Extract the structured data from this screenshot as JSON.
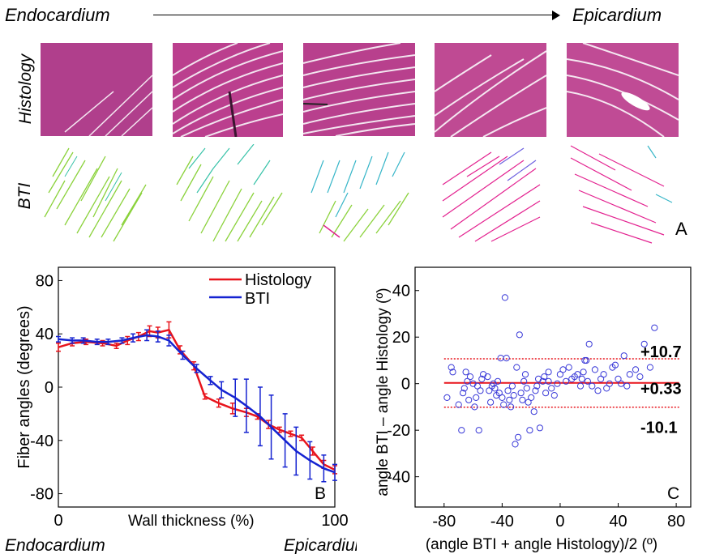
{
  "header": {
    "left": "Endocardium",
    "right": "Epicardium"
  },
  "rows": {
    "histology": "Histology",
    "bti": "BTI"
  },
  "panel_labels": {
    "a": "A",
    "b": "B",
    "c": "C"
  },
  "chart_data": [
    {
      "type": "line",
      "panel": "B",
      "xlabel": "Wall thickness (%)",
      "ylabel": "Fiber angles (degrees)",
      "xlim": [
        0,
        100
      ],
      "ylim": [
        -90,
        90
      ],
      "xticks": [
        "0",
        "100"
      ],
      "yticks": [
        "80",
        "40",
        "0",
        "-40",
        "-80"
      ],
      "legend": {
        "position": "top-right"
      },
      "bottom_left_label": "Endocardium",
      "bottom_right_label": "Epicardium",
      "series": [
        {
          "name": "Histology",
          "color": "#e8141c",
          "x": [
            0,
            5,
            10,
            16,
            21,
            25,
            29,
            33,
            36,
            40,
            44,
            49,
            53,
            58,
            63,
            68,
            72,
            76,
            80,
            84,
            88,
            92,
            96,
            100
          ],
          "y": [
            30,
            33,
            34,
            33,
            31,
            35,
            38,
            42,
            41,
            43,
            28,
            16,
            -7,
            -12,
            -16,
            -19,
            -22,
            -28,
            -32,
            -35,
            -38,
            -48,
            -58,
            -62
          ],
          "err": [
            3,
            2,
            2,
            2,
            2,
            3,
            3,
            4,
            4,
            6,
            3,
            3,
            2,
            3,
            4,
            3,
            2,
            3,
            2,
            2,
            2,
            3,
            3,
            3
          ]
        },
        {
          "name": "BTI",
          "color": "#1523d1",
          "x": [
            0,
            5,
            9,
            14,
            18,
            23,
            27,
            32,
            36,
            40,
            45,
            50,
            55,
            59,
            64,
            68,
            73,
            77,
            82,
            86,
            91,
            96,
            100
          ],
          "y": [
            36,
            35,
            35,
            34,
            34,
            35,
            37,
            39,
            38,
            35,
            24,
            14,
            5,
            -2,
            -8,
            -14,
            -22,
            -30,
            -40,
            -48,
            -55,
            -61,
            -64
          ],
          "err": [
            2,
            2,
            2,
            2,
            2,
            2,
            3,
            4,
            4,
            4,
            3,
            3,
            3,
            6,
            14,
            20,
            22,
            24,
            20,
            18,
            14,
            10,
            6
          ]
        }
      ]
    },
    {
      "type": "scatter",
      "panel": "C",
      "xlabel": "(angle BTI + angle Histology)/2 (º)",
      "ylabel": "angle BTI – angle Histology (º)",
      "xlim": [
        -100,
        90
      ],
      "ylim": [
        -53,
        50
      ],
      "xticks": [
        "-80",
        "-40",
        "0",
        "40",
        "80"
      ],
      "yticks": [
        "40",
        "20",
        "0",
        "-20",
        "-40"
      ],
      "lines": [
        {
          "label": "+10.7",
          "value": 10.7,
          "style": "dotted"
        },
        {
          "label": "+0.33",
          "value": 0.33,
          "style": "solid"
        },
        {
          "label": "-10.1",
          "value": -10.1,
          "style": "dotted"
        }
      ],
      "points": [
        [
          -78,
          -6
        ],
        [
          -75,
          7
        ],
        [
          -74,
          5
        ],
        [
          -70,
          -9
        ],
        [
          -68,
          -20
        ],
        [
          -67,
          -4
        ],
        [
          -66,
          -2
        ],
        [
          -65,
          5
        ],
        [
          -64,
          1
        ],
        [
          -63,
          -7
        ],
        [
          -62,
          3
        ],
        [
          -60,
          0
        ],
        [
          -59,
          -10
        ],
        [
          -58,
          -6
        ],
        [
          -57,
          -1
        ],
        [
          -56,
          -20
        ],
        [
          -55,
          -3
        ],
        [
          -54,
          2
        ],
        [
          -53,
          4
        ],
        [
          -50,
          3
        ],
        [
          -49,
          -3
        ],
        [
          -48,
          -8
        ],
        [
          -47,
          -1
        ],
        [
          -46,
          0
        ],
        [
          -45,
          -2
        ],
        [
          -44,
          -5
        ],
        [
          -43,
          1
        ],
        [
          -42,
          -4
        ],
        [
          -41,
          11
        ],
        [
          -40,
          -6
        ],
        [
          -39,
          -9
        ],
        [
          -38,
          37
        ],
        [
          -37,
          11
        ],
        [
          -36,
          -3
        ],
        [
          -35,
          -7
        ],
        [
          -34,
          -10
        ],
        [
          -33,
          -1
        ],
        [
          -32,
          -5
        ],
        [
          -31,
          -26
        ],
        [
          -30,
          7
        ],
        [
          -29,
          -23
        ],
        [
          -28,
          21
        ],
        [
          -27,
          -4
        ],
        [
          -26,
          -7
        ],
        [
          -25,
          1
        ],
        [
          -24,
          4
        ],
        [
          -23,
          -2
        ],
        [
          -22,
          -8
        ],
        [
          -21,
          -20
        ],
        [
          -20,
          -6
        ],
        [
          -18,
          -12
        ],
        [
          -17,
          -3
        ],
        [
          -16,
          -1
        ],
        [
          -15,
          2
        ],
        [
          -14,
          -19
        ],
        [
          -12,
          1
        ],
        [
          -11,
          3
        ],
        [
          -10,
          -4
        ],
        [
          -8,
          1
        ],
        [
          -6,
          -2
        ],
        [
          -4,
          -5
        ],
        [
          -2,
          0
        ],
        [
          0,
          4
        ],
        [
          2,
          6
        ],
        [
          4,
          1
        ],
        [
          6,
          7
        ],
        [
          8,
          2
        ],
        [
          10,
          3
        ],
        [
          12,
          4
        ],
        [
          14,
          -1
        ],
        [
          15,
          2
        ],
        [
          16,
          5
        ],
        [
          17,
          10
        ],
        [
          18,
          10
        ],
        [
          19,
          1
        ],
        [
          20,
          17
        ],
        [
          22,
          -1
        ],
        [
          24,
          6
        ],
        [
          26,
          -3
        ],
        [
          28,
          2
        ],
        [
          30,
          4
        ],
        [
          32,
          -2
        ],
        [
          34,
          0
        ],
        [
          36,
          7
        ],
        [
          38,
          8
        ],
        [
          40,
          2
        ],
        [
          42,
          0
        ],
        [
          44,
          12
        ],
        [
          46,
          -1
        ],
        [
          48,
          4
        ],
        [
          52,
          6
        ],
        [
          55,
          3
        ],
        [
          58,
          17
        ],
        [
          62,
          7
        ],
        [
          65,
          24
        ],
        [
          -8,
          5
        ]
      ]
    }
  ]
}
